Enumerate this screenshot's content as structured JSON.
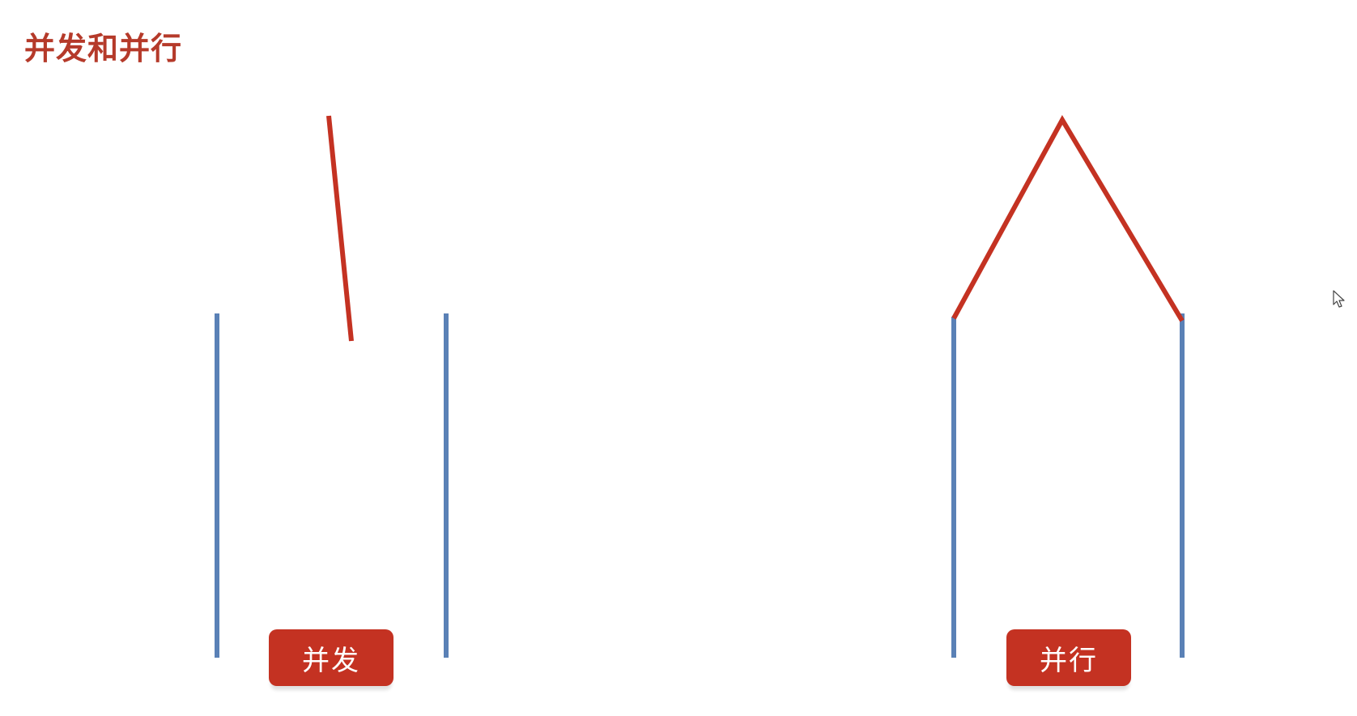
{
  "slide": {
    "title": "并发和并行"
  },
  "diagram": {
    "labels": {
      "concurrency": "并发",
      "parallelism": "并行"
    },
    "colors": {
      "title": "#b53a2a",
      "track": "#5a81b6",
      "thread": "#c43222",
      "label_bg": "#c43222"
    },
    "icons": {
      "cursor": "mouse-pointer-icon"
    }
  }
}
